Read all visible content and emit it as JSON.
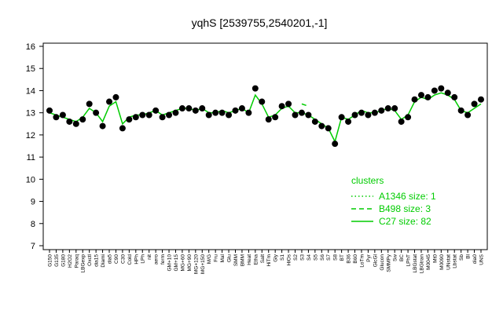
{
  "chart_data": {
    "type": "line",
    "title": "yqhS [2539755,2540201,-1]",
    "categories": [
      "G150",
      "G135",
      "G180",
      "H2O2",
      "Paraq",
      "LBGexp",
      "Oxctl",
      "dia15",
      "Diami",
      "dia5",
      "C90",
      "C30",
      "Cold",
      "HPh",
      "LPh",
      "nit",
      "aero",
      "ferm",
      "GM+10",
      "GM+15",
      "MG+60",
      "MG+90",
      "MG+120",
      "MG+150",
      "M/G",
      "Fru",
      "Mal",
      "Glu",
      "SMM",
      "BMM",
      "Heat",
      "Etha",
      "Salt",
      "HiTm",
      "Gly",
      "S1",
      "HiOs",
      "S2",
      "S3",
      "S4",
      "S5",
      "S6",
      "S7",
      "S8",
      "BT",
      "B36",
      "B60",
      "LoTm",
      "Pyr",
      "GlcGl",
      "Glucon",
      "SMMPy",
      "Sw",
      "BC",
      "LPhT",
      "LBGstat",
      "LBGtran",
      "M0045",
      "Mt0",
      "M0090",
      "UNstat",
      "Lbstat",
      "Sb",
      "Bl",
      "dia0",
      "UNS"
    ],
    "points": [
      13.1,
      12.8,
      12.9,
      12.6,
      12.5,
      12.7,
      13.4,
      13.0,
      12.4,
      13.5,
      13.7,
      12.3,
      12.7,
      12.8,
      12.9,
      12.9,
      13.1,
      12.8,
      12.9,
      13.0,
      13.2,
      13.2,
      13.1,
      13.2,
      12.9,
      13.0,
      13.0,
      12.9,
      13.1,
      13.2,
      13.0,
      14.1,
      13.5,
      12.7,
      12.8,
      13.3,
      13.4,
      12.9,
      13.0,
      12.9,
      12.6,
      12.4,
      12.3,
      11.6,
      12.8,
      12.6,
      12.9,
      13.0,
      12.9,
      13.0,
      13.1,
      13.2,
      13.2,
      12.6,
      12.8,
      13.6,
      13.8,
      13.7,
      14.0,
      14.1,
      13.9,
      13.7,
      13.1,
      12.9,
      13.4,
      13.6
    ],
    "series": [
      {
        "name": "A1346 size: 1",
        "color": "#00cc00",
        "style": "dotted",
        "values": [
          null,
          null,
          null,
          null,
          null,
          null,
          null,
          null,
          null,
          null,
          null,
          null,
          null,
          null,
          null,
          null,
          null,
          null,
          null,
          null,
          null,
          null,
          null,
          null,
          null,
          null,
          null,
          null,
          null,
          null,
          null,
          null,
          null,
          null,
          null,
          null,
          null,
          null,
          null,
          null,
          null,
          null,
          null,
          null,
          null,
          null,
          null,
          null,
          null,
          null,
          null,
          null,
          null,
          null,
          null,
          null,
          null,
          null,
          null,
          null,
          null,
          null,
          null,
          null,
          null,
          null
        ]
      },
      {
        "name": "B498 size: 3",
        "color": "#00cc00",
        "style": "dashed",
        "values": [
          null,
          null,
          null,
          null,
          null,
          null,
          null,
          null,
          null,
          null,
          null,
          null,
          null,
          null,
          null,
          null,
          null,
          null,
          null,
          null,
          null,
          null,
          null,
          null,
          null,
          null,
          null,
          null,
          null,
          null,
          null,
          null,
          null,
          null,
          null,
          null,
          null,
          null,
          13.4,
          13.3,
          null,
          null,
          null,
          null,
          null,
          null,
          null,
          null,
          null,
          null,
          null,
          null,
          null,
          null,
          null,
          null,
          null,
          null,
          null,
          null,
          null,
          null,
          null,
          null,
          null,
          null
        ]
      },
      {
        "name": "C27 size: 82",
        "color": "#00cc00",
        "style": "solid",
        "values": [
          13.0,
          12.9,
          12.8,
          12.7,
          12.6,
          12.8,
          13.2,
          13.0,
          12.6,
          13.3,
          13.5,
          12.5,
          12.8,
          12.9,
          12.9,
          13.0,
          13.1,
          12.9,
          13.0,
          13.1,
          13.2,
          13.2,
          13.1,
          13.2,
          13.0,
          13.0,
          13.1,
          13.0,
          13.1,
          13.2,
          13.0,
          13.8,
          13.4,
          12.8,
          12.9,
          13.2,
          13.3,
          13.0,
          13.0,
          12.9,
          12.7,
          12.5,
          12.3,
          11.7,
          12.8,
          12.7,
          12.9,
          13.1,
          13.0,
          13.0,
          13.1,
          13.2,
          13.1,
          12.7,
          12.9,
          13.5,
          13.7,
          13.6,
          13.8,
          13.9,
          13.8,
          13.6,
          13.1,
          13.0,
          13.2,
          13.4
        ]
      }
    ],
    "ylim": [
      7,
      16
    ],
    "yticks": [
      7,
      8,
      9,
      10,
      11,
      12,
      13,
      14,
      15,
      16
    ],
    "legend_title": "clusters",
    "point_color": "#000000"
  }
}
